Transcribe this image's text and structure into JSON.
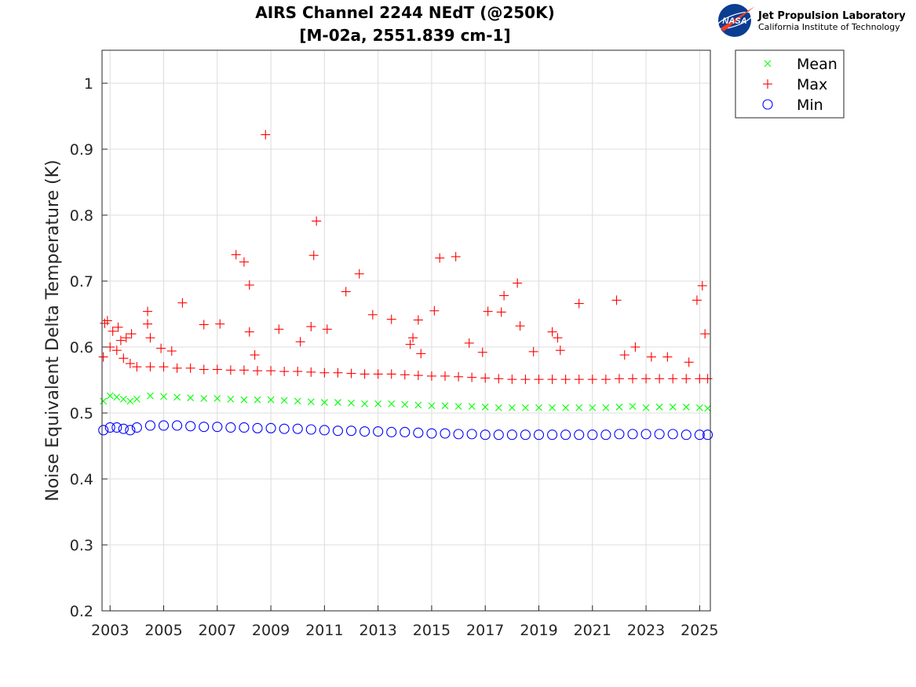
{
  "logo": {
    "name": "nasa-logo",
    "line1": "Jet Propulsion Laboratory",
    "line2": "California Institute of Technology"
  },
  "chart_data": {
    "type": "scatter",
    "title": [
      "AIRS Channel 2244 NEdT (@250K)",
      "[M-02a, 2551.839 cm-1]"
    ],
    "xlabel": "",
    "ylabel": "Noise Equivalent Delta Temperature (K)",
    "xlim": [
      2002.7,
      2025.4
    ],
    "ylim": [
      0.2,
      1.05
    ],
    "xticks": [
      2003,
      2005,
      2007,
      2009,
      2011,
      2013,
      2015,
      2017,
      2019,
      2021,
      2023,
      2025
    ],
    "yticks": [
      0.2,
      0.3,
      0.4,
      0.5,
      0.6,
      0.7,
      0.8,
      0.9,
      1
    ],
    "grid": true,
    "legend": {
      "placement": "outside-top-right",
      "entries": [
        {
          "name": "Mean",
          "marker": "x",
          "color": "#00ff00"
        },
        {
          "name": "Max",
          "marker": "+",
          "color": "#ff0000"
        },
        {
          "name": "Min",
          "marker": "o",
          "color": "#0000ff"
        }
      ]
    },
    "series": [
      {
        "name": "Mean",
        "marker": "x",
        "color": "#00ff00",
        "x": [
          2002.75,
          2003.0,
          2003.25,
          2003.5,
          2003.75,
          2004.0,
          2004.5,
          2005.0,
          2005.5,
          2006.0,
          2006.5,
          2007.0,
          2007.5,
          2008.0,
          2008.5,
          2009.0,
          2009.5,
          2010.0,
          2010.5,
          2011.0,
          2011.5,
          2012.0,
          2012.5,
          2013.0,
          2013.5,
          2014.0,
          2014.5,
          2015.0,
          2015.5,
          2016.0,
          2016.5,
          2017.0,
          2017.5,
          2018.0,
          2018.5,
          2019.0,
          2019.5,
          2020.0,
          2020.5,
          2021.0,
          2021.5,
          2022.0,
          2022.5,
          2023.0,
          2023.5,
          2024.0,
          2024.5,
          2025.0,
          2025.3
        ],
        "y": [
          0.518,
          0.526,
          0.524,
          0.521,
          0.518,
          0.521,
          0.526,
          0.525,
          0.524,
          0.523,
          0.522,
          0.522,
          0.521,
          0.52,
          0.52,
          0.52,
          0.519,
          0.518,
          0.517,
          0.516,
          0.516,
          0.515,
          0.514,
          0.514,
          0.514,
          0.513,
          0.512,
          0.511,
          0.511,
          0.51,
          0.51,
          0.509,
          0.508,
          0.508,
          0.508,
          0.508,
          0.508,
          0.508,
          0.508,
          0.508,
          0.508,
          0.509,
          0.51,
          0.508,
          0.509,
          0.509,
          0.509,
          0.508,
          0.507
        ]
      },
      {
        "name": "Max",
        "marker": "+",
        "color": "#ff0000",
        "x": [
          2002.75,
          2003.0,
          2003.25,
          2003.5,
          2003.75,
          2004.0,
          2004.5,
          2005.0,
          2005.5,
          2006.0,
          2006.5,
          2007.0,
          2007.5,
          2008.0,
          2008.5,
          2009.0,
          2009.5,
          2010.0,
          2010.5,
          2011.0,
          2011.5,
          2012.0,
          2012.5,
          2013.0,
          2013.5,
          2014.0,
          2014.5,
          2015.0,
          2015.5,
          2016.0,
          2016.5,
          2017.0,
          2017.5,
          2018.0,
          2018.5,
          2019.0,
          2019.5,
          2020.0,
          2020.5,
          2021.0,
          2021.5,
          2022.0,
          2022.5,
          2023.0,
          2023.5,
          2024.0,
          2024.5,
          2025.0,
          2025.3,
          2002.8,
          2002.9,
          2003.1,
          2003.3,
          2003.4,
          2003.6,
          2003.8,
          2004.4,
          2004.4,
          2004.5,
          2004.9,
          2005.3,
          2005.7,
          2006.5,
          2007.1,
          2007.7,
          2008.0,
          2008.2,
          2008.2,
          2008.4,
          2008.8,
          2009.3,
          2010.1,
          2010.5,
          2010.6,
          2010.7,
          2011.1,
          2011.8,
          2012.3,
          2012.8,
          2013.5,
          2014.2,
          2014.3,
          2014.5,
          2014.6,
          2015.1,
          2015.3,
          2015.9,
          2016.4,
          2016.9,
          2017.1,
          2017.6,
          2017.7,
          2018.2,
          2018.3,
          2018.8,
          2019.5,
          2019.7,
          2019.8,
          2020.5,
          2021.9,
          2022.2,
          2022.6,
          2023.2,
          2023.8,
          2024.6,
          2024.9,
          2025.1,
          2025.2
        ],
        "y": [
          0.585,
          0.6,
          0.595,
          0.583,
          0.575,
          0.57,
          0.57,
          0.57,
          0.568,
          0.568,
          0.566,
          0.566,
          0.565,
          0.565,
          0.564,
          0.564,
          0.563,
          0.563,
          0.562,
          0.561,
          0.561,
          0.56,
          0.559,
          0.559,
          0.559,
          0.558,
          0.557,
          0.556,
          0.556,
          0.555,
          0.554,
          0.553,
          0.552,
          0.551,
          0.551,
          0.551,
          0.551,
          0.551,
          0.551,
          0.551,
          0.551,
          0.552,
          0.552,
          0.552,
          0.552,
          0.552,
          0.552,
          0.552,
          0.552,
          0.636,
          0.64,
          0.624,
          0.63,
          0.61,
          0.614,
          0.62,
          0.654,
          0.635,
          0.614,
          0.598,
          0.594,
          0.667,
          0.634,
          0.635,
          0.74,
          0.729,
          0.694,
          0.623,
          0.588,
          0.922,
          0.627,
          0.608,
          0.631,
          0.739,
          0.791,
          0.627,
          0.684,
          0.711,
          0.649,
          0.642,
          0.604,
          0.614,
          0.641,
          0.59,
          0.655,
          0.735,
          0.737,
          0.606,
          0.592,
          0.654,
          0.653,
          0.678,
          0.697,
          0.632,
          0.593,
          0.623,
          0.614,
          0.595,
          0.666,
          0.671,
          0.588,
          0.6,
          0.585,
          0.585,
          0.577,
          0.671,
          0.693,
          0.62
        ]
      },
      {
        "name": "Min",
        "marker": "o",
        "color": "#0000ff",
        "x": [
          2002.75,
          2003.0,
          2003.25,
          2003.5,
          2003.75,
          2004.0,
          2004.5,
          2005.0,
          2005.5,
          2006.0,
          2006.5,
          2007.0,
          2007.5,
          2008.0,
          2008.5,
          2009.0,
          2009.5,
          2010.0,
          2010.5,
          2011.0,
          2011.5,
          2012.0,
          2012.5,
          2013.0,
          2013.5,
          2014.0,
          2014.5,
          2015.0,
          2015.5,
          2016.0,
          2016.5,
          2017.0,
          2017.5,
          2018.0,
          2018.5,
          2019.0,
          2019.5,
          2020.0,
          2020.5,
          2021.0,
          2021.5,
          2022.0,
          2022.5,
          2023.0,
          2023.5,
          2024.0,
          2024.5,
          2025.0,
          2025.3
        ],
        "y": [
          0.474,
          0.478,
          0.478,
          0.476,
          0.474,
          0.478,
          0.481,
          0.481,
          0.481,
          0.48,
          0.479,
          0.479,
          0.478,
          0.478,
          0.477,
          0.477,
          0.476,
          0.476,
          0.475,
          0.474,
          0.473,
          0.473,
          0.472,
          0.472,
          0.471,
          0.471,
          0.47,
          0.469,
          0.469,
          0.468,
          0.468,
          0.467,
          0.467,
          0.467,
          0.467,
          0.467,
          0.467,
          0.467,
          0.467,
          0.467,
          0.467,
          0.468,
          0.468,
          0.468,
          0.468,
          0.468,
          0.467,
          0.467,
          0.467
        ]
      }
    ]
  }
}
